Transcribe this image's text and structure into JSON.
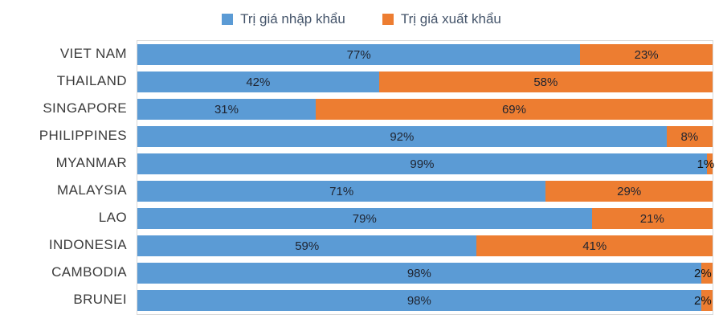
{
  "chart_data": {
    "type": "bar",
    "orientation": "horizontal",
    "stacked": true,
    "title": "",
    "xlabel": "",
    "ylabel": "",
    "xlim": [
      0,
      100
    ],
    "value_suffix": "%",
    "legend_position": "top",
    "grid": false,
    "categories": [
      "VIET NAM",
      "THAILAND",
      "SINGAPORE",
      "PHILIPPINES",
      "MYANMAR",
      "MALAYSIA",
      "LAO",
      "INDONESIA",
      "CAMBODIA",
      "BRUNEI"
    ],
    "series": [
      {
        "name": "Trị giá nhập khẩu",
        "color": "#5B9BD5",
        "values": [
          77,
          42,
          31,
          92,
          99,
          71,
          79,
          59,
          98,
          98
        ]
      },
      {
        "name": "Trị giá xuất khẩu",
        "color": "#ED7D31",
        "values": [
          23,
          58,
          69,
          8,
          1,
          29,
          21,
          41,
          2,
          2
        ]
      }
    ]
  }
}
